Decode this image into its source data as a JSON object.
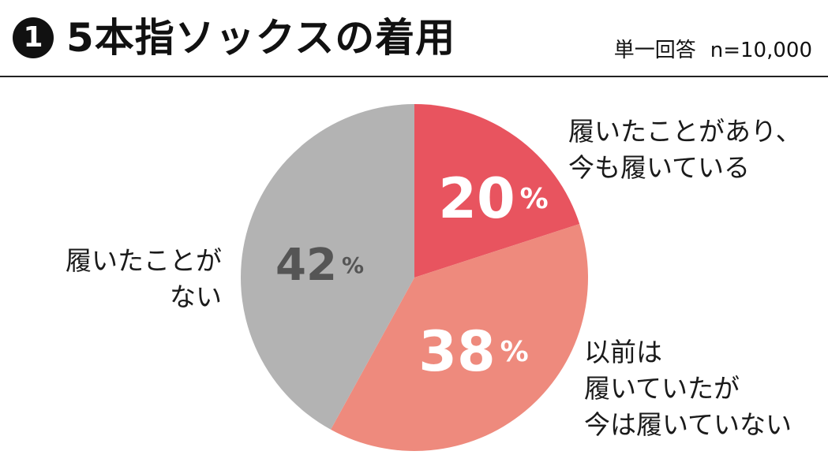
{
  "header": {
    "number": "1",
    "title": "5本指ソックスの着用",
    "answer_type": "単一回答",
    "sample": "n=10,000"
  },
  "chart_data": {
    "type": "pie",
    "title": "5本指ソックスの着用",
    "unit": "%",
    "slices": [
      {
        "label_lines": [
          "履いたことがあり、",
          "今も履いている"
        ],
        "value": 20,
        "color": "#e8545f",
        "value_color": "#ffffff"
      },
      {
        "label_lines": [
          "以前は",
          "履いていたが",
          "今は履いていない"
        ],
        "value": 38,
        "color": "#ee8a7d",
        "value_color": "#ffffff"
      },
      {
        "label_lines": [
          "履いたことが",
          "ない"
        ],
        "value": 42,
        "color": "#b3b3b3",
        "value_color": "#555555"
      }
    ]
  }
}
